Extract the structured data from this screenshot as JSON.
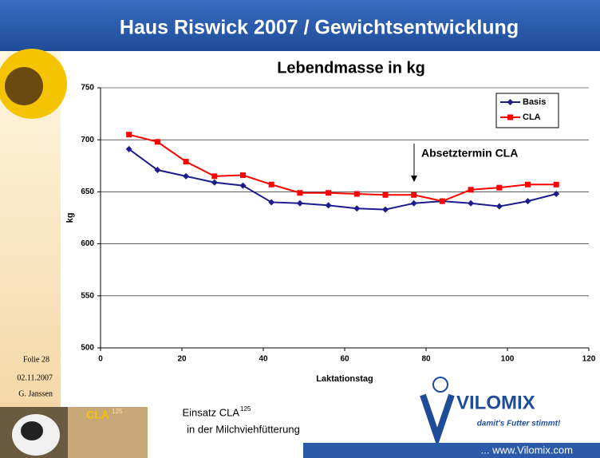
{
  "header": {
    "title": "Haus Riswick 2007 / Gewichtsentwicklung"
  },
  "sidebar": {
    "slide": "Folie 28",
    "date": "02.11.2007",
    "author": "G. Janssen"
  },
  "footer": {
    "logo_text": "CLA",
    "logo_sup": "125",
    "caption_line1": "Einsatz CLA",
    "caption_sup": "125",
    "caption_line2": "in der Milchviehfütterung",
    "brand": "VILOMIX",
    "slogan": "damit's Futter stimmt!",
    "url": "... www.Vilomix.com"
  },
  "chart_data": {
    "type": "line",
    "title": "Lebendmasse in kg",
    "x_label": "Laktationstag",
    "y_label": "kg",
    "annotation": "Absetztermin CLA",
    "x": [
      7,
      14,
      21,
      28,
      35,
      42,
      49,
      56,
      63,
      70,
      77,
      84,
      91,
      98,
      105,
      112
    ],
    "series": [
      {
        "name": "Basis",
        "color": "#1c1c8c",
        "marker": "diamond",
        "values": [
          691,
          671,
          665,
          659,
          656,
          640,
          639,
          637,
          634,
          633,
          639,
          641,
          639,
          636,
          641,
          648
        ]
      },
      {
        "name": "CLA",
        "color": "#ff0000",
        "marker": "square",
        "values": [
          705,
          698,
          679,
          665,
          666,
          657,
          649,
          649,
          648,
          647,
          647,
          641,
          652,
          654,
          657,
          657
        ]
      }
    ],
    "xlim": [
      0,
      120
    ],
    "xticks": [
      0,
      20,
      40,
      60,
      80,
      100,
      120
    ],
    "ylim": [
      500,
      750
    ],
    "yticks": [
      500,
      550,
      600,
      650,
      700,
      750
    ],
    "grid": true,
    "legend": "top-right"
  }
}
